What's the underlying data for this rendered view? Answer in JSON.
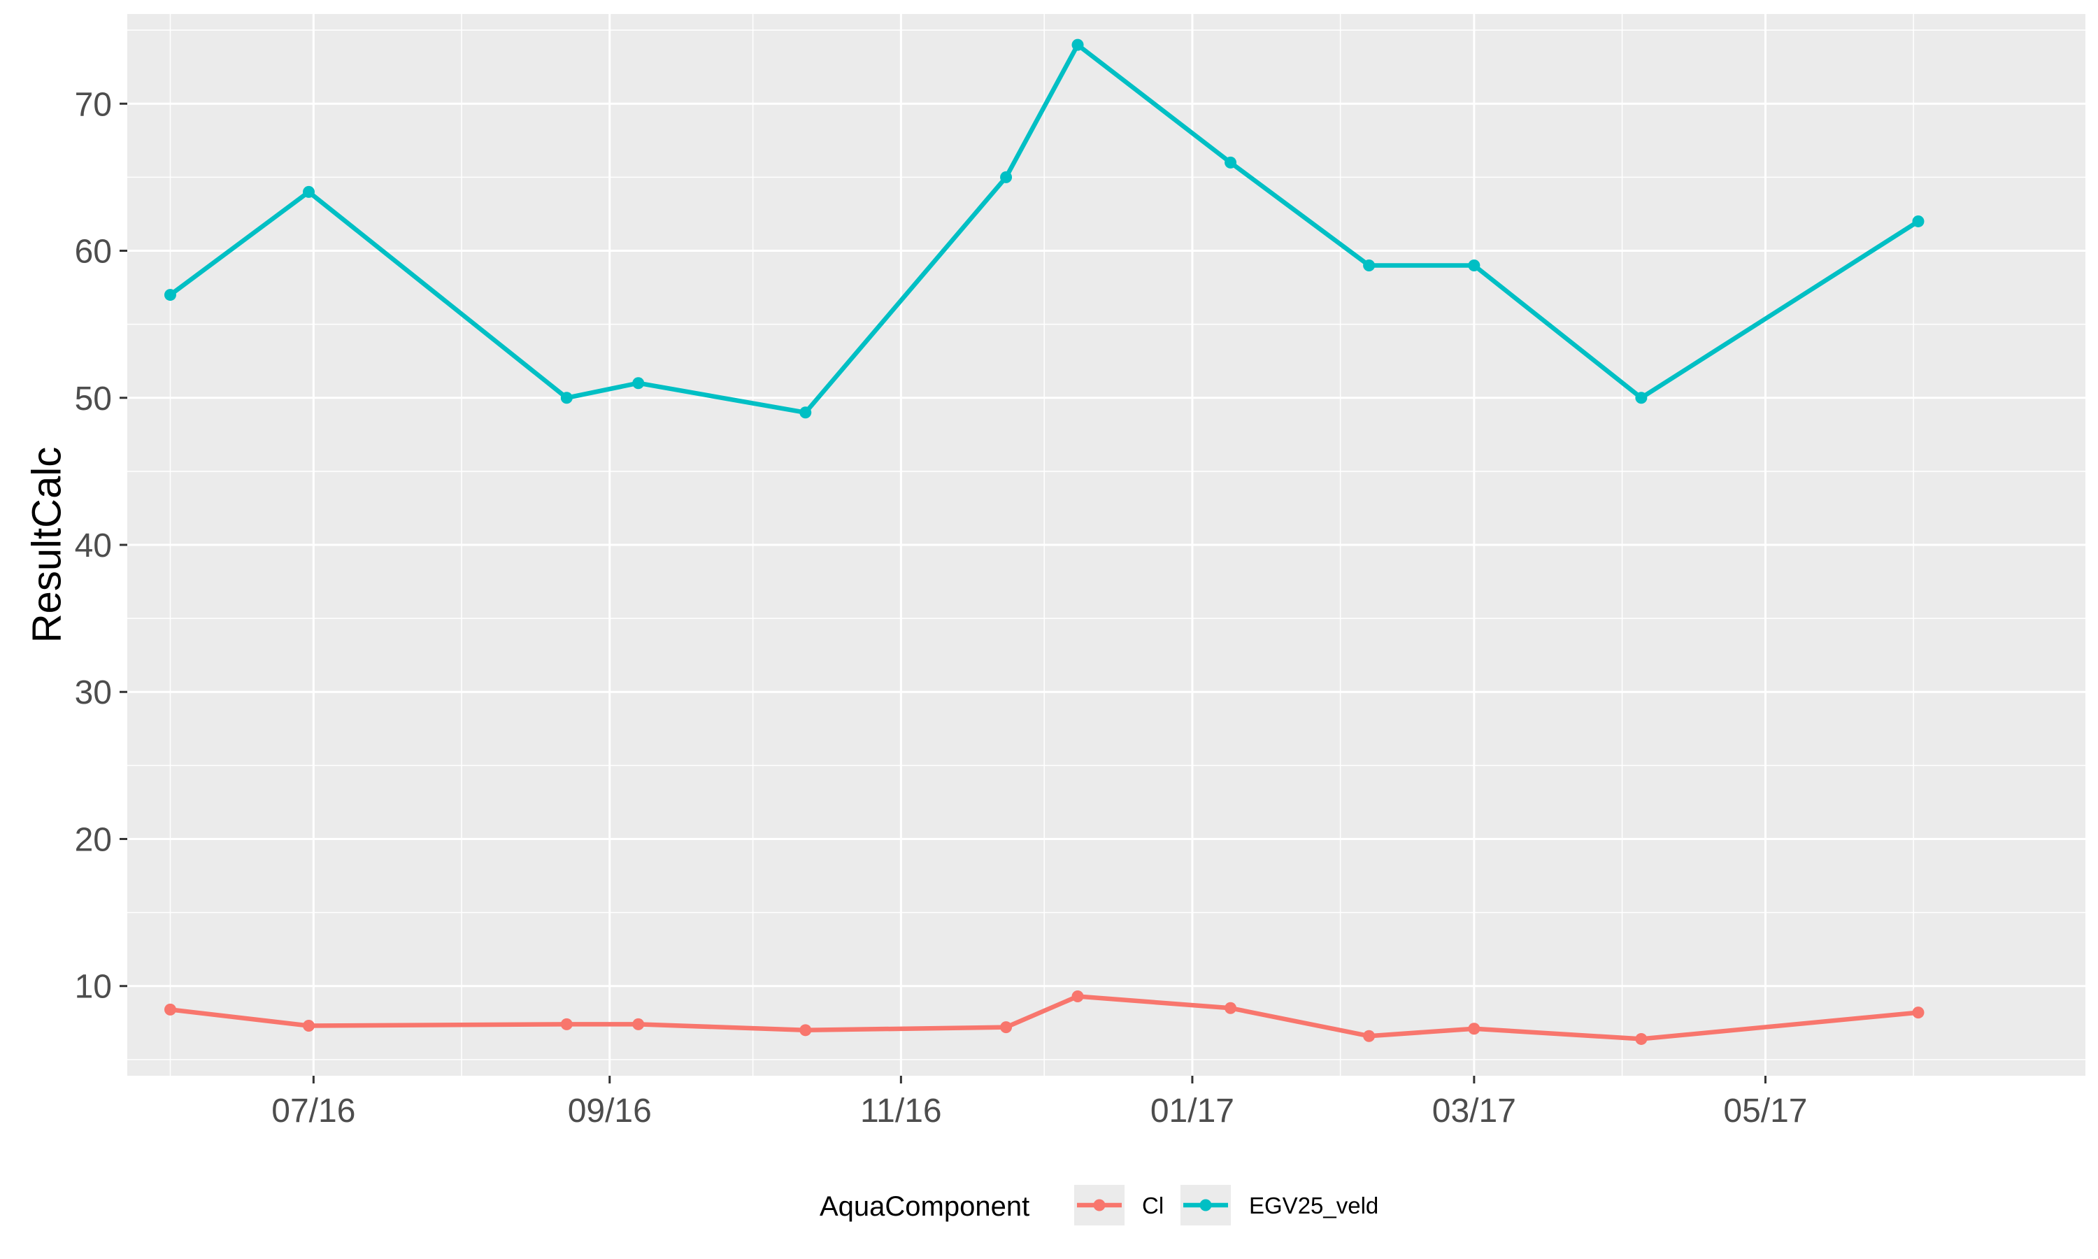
{
  "chart_data": {
    "type": "line",
    "title": "",
    "xlabel": "",
    "ylabel": "ResultCalc",
    "x_axis": {
      "scale": "date",
      "range": [
        "2016-05-23",
        "2017-07-07"
      ],
      "ticks": [
        {
          "date": "2016-07-01",
          "label": "07/16"
        },
        {
          "date": "2016-09-01",
          "label": "09/16"
        },
        {
          "date": "2016-11-01",
          "label": "11/16"
        },
        {
          "date": "2017-01-01",
          "label": "01/17"
        },
        {
          "date": "2017-03-01",
          "label": "03/17"
        },
        {
          "date": "2017-05-01",
          "label": "05/17"
        }
      ],
      "minor_ticks": [
        "2016-06-01",
        "2016-08-01",
        "2016-10-01",
        "2016-12-01",
        "2017-02-01",
        "2017-04-01",
        "2017-06-01"
      ]
    },
    "y_axis": {
      "range": [
        3.9,
        76.1
      ],
      "ticks": [
        10,
        20,
        30,
        40,
        50,
        60,
        70
      ],
      "minor_ticks": [
        5,
        15,
        25,
        35,
        45,
        55,
        65,
        75
      ]
    },
    "grid": true,
    "panel_background": "#ebebeb",
    "legend": {
      "title": "AquaComponent",
      "position": "bottom"
    },
    "series": [
      {
        "name": "Cl",
        "color": "#f8766d",
        "x": [
          "2016-06-01",
          "2016-06-30",
          "2016-08-23",
          "2016-09-07",
          "2016-10-12",
          "2016-11-23",
          "2016-12-08",
          "2017-01-09",
          "2017-02-07",
          "2017-03-01",
          "2017-04-05",
          "2017-06-02"
        ],
        "y": [
          8.4,
          7.3,
          7.4,
          7.4,
          7.0,
          7.2,
          9.3,
          8.5,
          6.6,
          7.1,
          6.4,
          8.2
        ]
      },
      {
        "name": "EGV25_veld",
        "color": "#00bfc4",
        "x": [
          "2016-06-01",
          "2016-06-30",
          "2016-08-23",
          "2016-09-07",
          "2016-10-12",
          "2016-11-23",
          "2016-12-08",
          "2017-01-09",
          "2017-02-07",
          "2017-03-01",
          "2017-04-05",
          "2017-06-02"
        ],
        "y": [
          57,
          64,
          50,
          51,
          49,
          65,
          74,
          66,
          59,
          59,
          50,
          62
        ]
      }
    ]
  }
}
